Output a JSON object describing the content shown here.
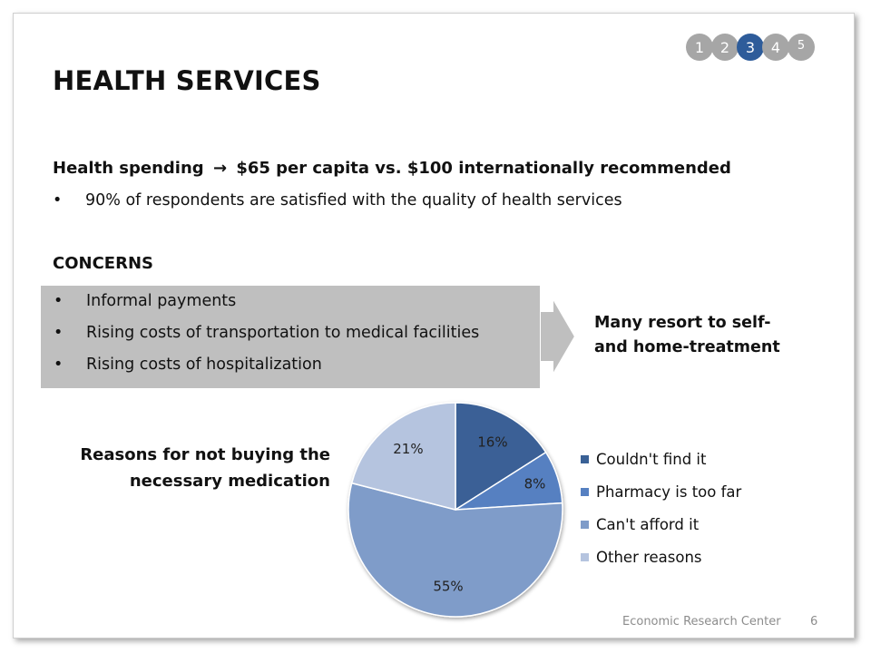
{
  "pager": {
    "pages": [
      "1",
      "2",
      "3",
      "4",
      "5"
    ],
    "active": "3"
  },
  "title": "HEALTH SERVICES",
  "spending": {
    "prefix": "Health spending",
    "arrow": "→",
    "text": "$65 per capita vs. $100 internationally recommended"
  },
  "satisfaction": "90% of respondents are satisfied with the quality of health services",
  "concerns": {
    "title": "CONCERNS",
    "items": [
      "Informal payments",
      "Rising costs of transportation to medical facilities",
      "Rising costs of hospitalization"
    ]
  },
  "outcome": {
    "line1": "Many resort to self-",
    "line2": "and home-treatment"
  },
  "reasons_label": {
    "line1": "Reasons for not buying the",
    "line2": "necessary medication"
  },
  "chart_data": {
    "type": "pie",
    "categories": [
      "Couldn't find it",
      "Pharmacy is too far",
      "Can't afford it",
      "Other reasons"
    ],
    "values": [
      16,
      8,
      55,
      21
    ],
    "labels": [
      "16%",
      "8%",
      "55%",
      "21%"
    ],
    "colors": [
      "#3a6196",
      "#5680c1",
      "#7f9cc9",
      "#b5c4df"
    ],
    "legend": "right"
  },
  "footer": {
    "org": "Economic Research Center",
    "page": "6"
  }
}
